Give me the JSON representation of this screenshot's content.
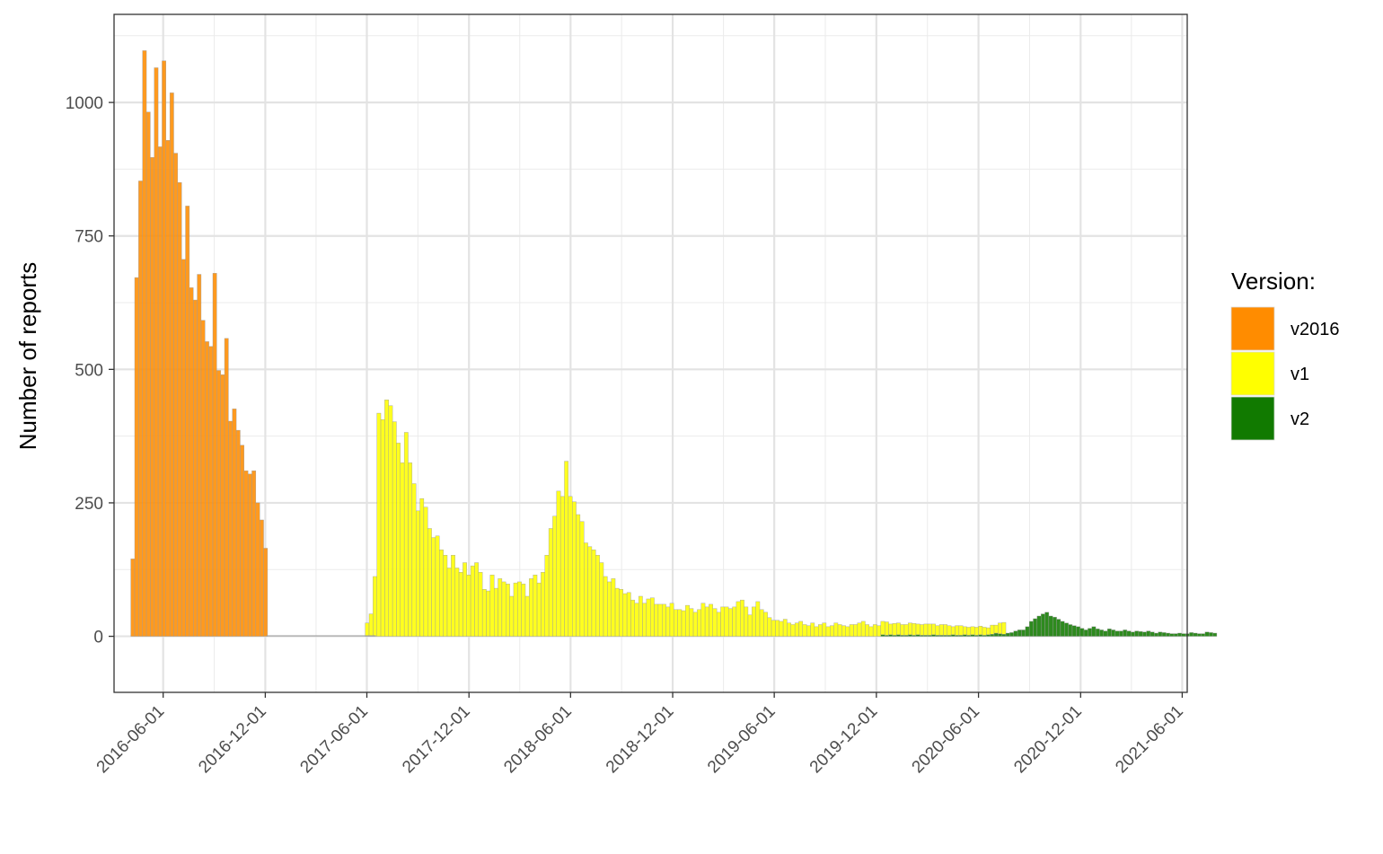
{
  "chart_data": {
    "type": "bar",
    "stacked": true,
    "bin": "week",
    "xlabel": "",
    "ylabel": "Number of reports",
    "x_range": [
      "2016-03-05",
      "2021-06-10"
    ],
    "ylim": [
      -105,
      1165
    ],
    "y_ticks": [
      0,
      250,
      500,
      750,
      1000
    ],
    "x_ticks": [
      "2016-06-01",
      "2016-12-01",
      "2017-06-01",
      "2017-12-01",
      "2018-06-01",
      "2018-12-01",
      "2019-06-01",
      "2019-12-01",
      "2020-06-01",
      "2020-12-01",
      "2021-06-01"
    ],
    "grid": true,
    "legend": {
      "title": "Version:",
      "position": "right",
      "items": [
        {
          "name": "v2016",
          "color": "#FF8C00"
        },
        {
          "name": "v1",
          "color": "#FFFF00"
        },
        {
          "name": "v2",
          "color": "#117A00"
        }
      ]
    },
    "start_week": "2016-04-04",
    "series": [
      {
        "name": "v2016",
        "color": "#FF8C00",
        "values": [
          145,
          672,
          853,
          1097,
          982,
          897,
          1065,
          917,
          1078,
          929,
          1018,
          905,
          850,
          706,
          806,
          653,
          630,
          678,
          592,
          552,
          543,
          680,
          498,
          490,
          558,
          403,
          426,
          386,
          358,
          310,
          304,
          310,
          250,
          218,
          165
        ]
      },
      {
        "name": "v1",
        "color": "#FFFF00",
        "values": [
          0,
          0,
          0,
          0,
          0,
          0,
          0,
          0,
          0,
          0,
          0,
          0,
          0,
          0,
          0,
          0,
          0,
          0,
          0,
          0,
          0,
          0,
          0,
          0,
          0,
          0,
          0,
          0,
          0,
          0,
          0,
          0,
          0,
          0,
          0,
          0,
          0,
          0,
          0,
          0,
          0,
          0,
          0,
          0,
          0,
          0,
          0,
          0,
          0,
          0,
          0,
          0,
          0,
          0,
          0,
          0,
          0,
          0,
          0,
          0,
          25,
          42,
          112,
          418,
          406,
          443,
          432,
          402,
          362,
          325,
          382,
          325,
          286,
          235,
          258,
          242,
          202,
          185,
          188,
          162,
          152,
          128,
          152,
          128,
          120,
          138,
          115,
          132,
          138,
          120,
          88,
          85,
          115,
          90,
          108,
          102,
          98,
          75,
          100,
          102,
          98,
          75,
          108,
          115,
          100,
          120,
          152,
          202,
          225,
          272,
          262,
          328,
          262,
          252,
          228,
          215,
          175,
          168,
          162,
          152,
          138,
          112,
          102,
          108,
          90,
          88,
          80,
          82,
          68,
          62,
          75,
          62,
          70,
          72,
          60,
          60,
          60,
          55,
          62,
          50,
          50,
          48,
          58,
          52,
          45,
          50,
          62,
          55,
          60,
          52,
          45,
          55,
          55,
          52,
          55,
          65,
          68,
          55,
          40,
          55,
          65,
          50,
          45,
          35,
          30,
          30,
          28,
          32,
          25,
          22,
          25,
          28,
          22,
          20,
          25,
          18,
          22,
          25,
          18,
          20,
          25,
          22,
          20,
          18,
          22,
          22,
          25,
          28,
          22,
          18,
          22,
          20,
          25,
          25,
          20,
          22,
          22,
          20,
          20,
          22,
          22,
          20,
          20,
          21,
          21,
          20,
          18,
          20,
          20,
          18,
          15,
          18,
          18,
          15,
          15,
          15,
          15,
          16,
          15,
          13,
          17,
          15,
          20,
          22
        ]
      },
      {
        "name": "v2",
        "color": "#117A00",
        "values": [
          0,
          0,
          0,
          0,
          0,
          0,
          0,
          0,
          0,
          0,
          0,
          0,
          0,
          0,
          0,
          0,
          0,
          0,
          0,
          0,
          0,
          0,
          0,
          0,
          0,
          0,
          0,
          0,
          0,
          0,
          0,
          0,
          0,
          0,
          0,
          0,
          0,
          0,
          0,
          0,
          0,
          0,
          0,
          0,
          0,
          0,
          0,
          0,
          0,
          0,
          0,
          0,
          0,
          0,
          0,
          0,
          0,
          0,
          0,
          0,
          0,
          0,
          0,
          0,
          0,
          0,
          0,
          0,
          0,
          0,
          0,
          0,
          0,
          0,
          0,
          0,
          0,
          0,
          0,
          0,
          0,
          0,
          0,
          0,
          0,
          0,
          0,
          0,
          0,
          0,
          0,
          0,
          0,
          0,
          0,
          0,
          0,
          0,
          0,
          0,
          0,
          0,
          0,
          0,
          0,
          0,
          0,
          0,
          0,
          0,
          0,
          0,
          0,
          0,
          0,
          0,
          0,
          0,
          0,
          0,
          0,
          0,
          0,
          0,
          0,
          0,
          0,
          0,
          0,
          0,
          0,
          0,
          0,
          0,
          0,
          0,
          0,
          0,
          0,
          0,
          0,
          0,
          0,
          0,
          0,
          0,
          0,
          0,
          0,
          0,
          0,
          0,
          0,
          0,
          0,
          0,
          0,
          0,
          0,
          0,
          0,
          0,
          0,
          0,
          0,
          0,
          0,
          0,
          0,
          0,
          0,
          0,
          0,
          0,
          0,
          0,
          0,
          0,
          0,
          0,
          0,
          0,
          0,
          0,
          0,
          0,
          0,
          0,
          0,
          0,
          0,
          0,
          3,
          2,
          3,
          2,
          3,
          2,
          2,
          3,
          2,
          3,
          2,
          2,
          2,
          3,
          2,
          2,
          2,
          2,
          3,
          2,
          2,
          3,
          2,
          3,
          2,
          3,
          2,
          3,
          4,
          6,
          5,
          4,
          6,
          7,
          10,
          12,
          12,
          18,
          28,
          33,
          38,
          42,
          45,
          38,
          36,
          32,
          28,
          25,
          22,
          20,
          18,
          15,
          12,
          15,
          18,
          14,
          12,
          10,
          14,
          12,
          10,
          10,
          12,
          10,
          8,
          10,
          9,
          8,
          10,
          8,
          6,
          8,
          7,
          6,
          5,
          5,
          6,
          5,
          5,
          7,
          6,
          5,
          5,
          8,
          7,
          6
        ]
      }
    ],
    "zero_gap_line": {
      "from": "2016-12-03",
      "to": "2017-06-17"
    }
  }
}
